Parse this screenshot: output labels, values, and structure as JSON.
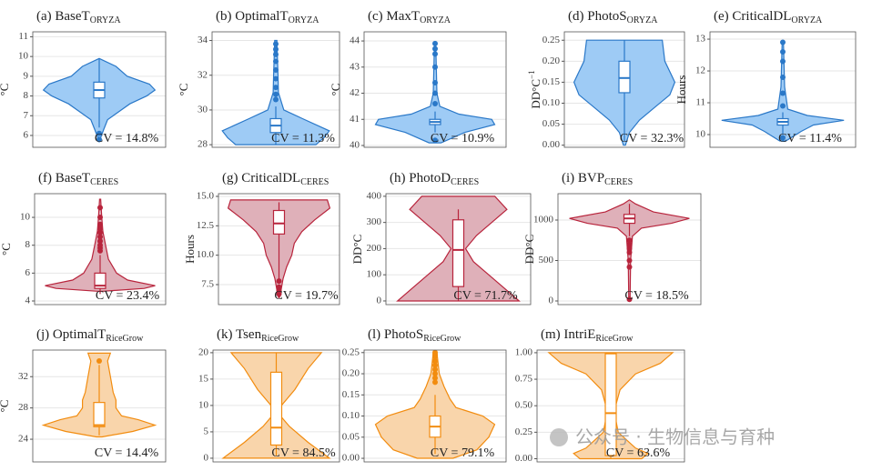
{
  "watermark": "公众号 · 生物信息与育种",
  "chart_data": [
    {
      "type": "violin",
      "title": "(a) BaseT",
      "title_sub": "ORYZA",
      "ylabel": "°C",
      "ylim": [
        5.4,
        11.25
      ],
      "yticks": [
        6,
        7,
        8,
        9,
        10,
        11
      ],
      "grid": true,
      "color": "#2a78c8",
      "fill": "#9ecbf5",
      "violin": {
        "y": [
          5.7,
          6.3,
          6.8,
          7.2,
          7.6,
          8.0,
          8.3,
          8.6,
          9.0,
          9.5,
          9.9
        ],
        "density": [
          0,
          0.08,
          0.15,
          0.35,
          0.55,
          0.85,
          1.0,
          0.9,
          0.5,
          0.3,
          0
        ]
      },
      "box": {
        "whisker_low": 6.4,
        "q1": 7.9,
        "median": 8.3,
        "q3": 8.7,
        "whisker_high": 9.9
      },
      "outliers": [
        6.1,
        5.8
      ],
      "annotation": "CV = 14.8%"
    },
    {
      "type": "violin",
      "title": "(b) OptimalT",
      "title_sub": "ORYZA",
      "ylabel": "°C",
      "ylim": [
        27.85,
        34.5
      ],
      "yticks": [
        28,
        30,
        32,
        34
      ],
      "grid": true,
      "color": "#2a78c8",
      "fill": "#9ecbf5",
      "violin": {
        "y": [
          28.0,
          28.4,
          28.8,
          29.5,
          30.0,
          31.0,
          32.0,
          33.0,
          34.0
        ],
        "density": [
          0.75,
          0.9,
          1.0,
          0.5,
          0.15,
          0.05,
          0.04,
          0.03,
          0.02
        ]
      },
      "box": {
        "whisker_low": 28.0,
        "q1": 28.7,
        "median": 29.1,
        "q3": 29.5,
        "whisker_high": 30.2
      },
      "outliers": [
        30.6,
        30.9,
        31.3,
        31.8,
        32.3,
        32.8,
        33.2,
        33.5,
        33.8
      ],
      "annotation": "CV = 11.3%"
    },
    {
      "type": "violin",
      "title": "(c) MaxT",
      "title_sub": "ORYZA",
      "ylabel": "°C",
      "ylim": [
        39.93,
        44.35
      ],
      "yticks": [
        40,
        41,
        42,
        43,
        44
      ],
      "grid": true,
      "color": "#2a78c8",
      "fill": "#9ecbf5",
      "violin": {
        "y": [
          40.1,
          40.5,
          40.8,
          41.0,
          41.2,
          41.5,
          42.0,
          43.9
        ],
        "density": [
          0.1,
          0.5,
          1.0,
          0.95,
          0.4,
          0.08,
          0.03,
          0.01
        ]
      },
      "box": {
        "whisker_low": 40.5,
        "q1": 40.8,
        "median": 40.9,
        "q3": 41.0,
        "whisker_high": 41.3
      },
      "outliers": [
        40.2,
        41.6,
        42.0,
        42.4,
        43.0,
        43.5,
        43.7,
        43.9
      ],
      "annotation": "CV = 10.9%"
    },
    {
      "type": "violin",
      "title": "(d) PhotoS",
      "title_sub": "ORYZA",
      "ylabel": "DD°C",
      "ylabel_sup": "−1",
      "ylim": [
        -0.005,
        0.27
      ],
      "yticks": [
        {
          "value": 0,
          "label": "0.00"
        },
        0.05,
        {
          "value": 0.1,
          "label": "0.10"
        },
        0.15,
        {
          "value": 0.2,
          "label": "0.20"
        },
        0.25
      ],
      "grid": true,
      "color": "#2a78c8",
      "fill": "#9ecbf5",
      "violin": {
        "y": [
          0.0,
          0.03,
          0.06,
          0.09,
          0.12,
          0.15,
          0.2,
          0.25
        ],
        "density": [
          0.02,
          0.1,
          0.3,
          0.6,
          0.9,
          1.0,
          0.8,
          0.75
        ]
      },
      "box": {
        "whisker_low": 0.01,
        "q1": 0.125,
        "median": 0.16,
        "q3": 0.2,
        "whisker_high": 0.25
      },
      "outliers": [],
      "annotation": "CV = 32.3%"
    },
    {
      "type": "violin",
      "title": "(e) CriticalDL",
      "title_sub": "ORYZA",
      "ylabel": "Hours",
      "ylim": [
        9.6,
        13.23
      ],
      "yticks": [
        10,
        11,
        12,
        13
      ],
      "grid": true,
      "color": "#2a78c8",
      "fill": "#9ecbf5",
      "violin": {
        "y": [
          9.8,
          10.1,
          10.3,
          10.45,
          10.6,
          10.8,
          11.5,
          12.9
        ],
        "density": [
          0.05,
          0.3,
          0.5,
          1.0,
          0.4,
          0.08,
          0.03,
          0.01
        ]
      },
      "box": {
        "whisker_low": 10.0,
        "q1": 10.3,
        "median": 10.4,
        "q3": 10.5,
        "whisker_high": 10.7
      },
      "outliers": [
        9.9,
        10.9,
        11.3,
        11.8,
        12.3,
        12.6,
        12.9
      ],
      "annotation": "CV = 11.4%"
    },
    {
      "type": "violin",
      "title": "(f) BaseT",
      "title_sub": "CERES",
      "ylabel": "°C",
      "ylim": [
        3.74,
        11.7
      ],
      "yticks": [
        4,
        6,
        8,
        10
      ],
      "grid": true,
      "color": "#b8243c",
      "fill": "#dfb0b9",
      "violin": {
        "y": [
          4.7,
          4.9,
          5.1,
          5.5,
          6,
          7,
          8,
          9,
          10,
          11.3
        ],
        "density": [
          0.05,
          0.8,
          1.0,
          0.5,
          0.3,
          0.15,
          0.1,
          0.05,
          0.03,
          0.01
        ]
      },
      "box": {
        "whisker_low": 4.5,
        "q1": 4.9,
        "median": 5.1,
        "q3": 6.0,
        "whisker_high": 7.3
      },
      "outliers": [
        7.6,
        7.8,
        8.0,
        8.3,
        8.6,
        8.9,
        9.2,
        9.5,
        10.0,
        10.7
      ],
      "annotation": "CV = 23.4%"
    },
    {
      "type": "violin",
      "title": "(g) CriticalDL",
      "title_sub": "CERES",
      "ylabel": "Hours",
      "ylim": [
        5.8,
        15.23
      ],
      "yticks": [
        7.5,
        {
          "value": 10,
          "label": "10.0"
        },
        12.5,
        {
          "value": 15,
          "label": "15.0"
        }
      ],
      "grid": true,
      "color": "#b8243c",
      "fill": "#dfb0b9",
      "violin": {
        "y": [
          6.4,
          7,
          8,
          9,
          10,
          11,
          12,
          13,
          14,
          14.7
        ],
        "density": [
          0.01,
          0.04,
          0.08,
          0.15,
          0.25,
          0.3,
          0.45,
          0.7,
          1.0,
          0.95
        ]
      },
      "box": {
        "whisker_low": 8.0,
        "q1": 11.8,
        "median": 12.7,
        "q3": 13.8,
        "whisker_high": 14.5
      },
      "outliers": [
        7.8,
        7.3,
        7.0,
        6.7
      ],
      "annotation": "CV = 19.7%"
    },
    {
      "type": "violin",
      "title": "(h) PhotoD",
      "title_sub": "CERES",
      "ylabel": "DD°C",
      "ylim": [
        -14,
        410
      ],
      "yticks": [
        0,
        100,
        200,
        300,
        400
      ],
      "grid": true,
      "color": "#b8243c",
      "fill": "#dfb0b9",
      "violin": {
        "y": [
          0,
          50,
          100,
          150,
          200,
          250,
          300,
          350,
          400
        ],
        "density": [
          1.0,
          0.75,
          0.5,
          0.25,
          0.12,
          0.3,
          0.55,
          0.8,
          0.6
        ]
      },
      "box": {
        "whisker_low": 0,
        "q1": 55,
        "median": 195,
        "q3": 310,
        "whisker_high": 350
      },
      "outliers": [],
      "annotation": "CV = 71.7%"
    },
    {
      "type": "violin",
      "title": "(i) BVP",
      "title_sub": "CERES",
      "ylabel": "DD°C",
      "ylim": [
        -45,
        1326
      ],
      "yticks": [
        0,
        500,
        1000
      ],
      "grid": true,
      "color": "#b8243c",
      "fill": "#dfb0b9",
      "violin": {
        "y": [
          20,
          500,
          800,
          900,
          960,
          1020,
          1100,
          1200,
          1250
        ],
        "density": [
          0.01,
          0.02,
          0.05,
          0.2,
          0.7,
          1.0,
          0.4,
          0.1,
          0
        ]
      },
      "box": {
        "whisker_low": 800,
        "q1": 960,
        "median": 1020,
        "q3": 1070,
        "whisker_high": 1200
      },
      "outliers": [
        750,
        700,
        650,
        600,
        500,
        420,
        20
      ],
      "annotation": "CV = 18.5%"
    },
    {
      "type": "violin",
      "title": "(j) OptimalT",
      "title_sub": "RiceGrow",
      "ylabel": "°C",
      "ylim": [
        21.1,
        35.4
      ],
      "yticks": [
        24,
        28,
        32
      ],
      "grid": true,
      "color": "#f28c0f",
      "fill": "#f9d5ab",
      "violin": {
        "y": [
          24.3,
          25,
          25.8,
          26.5,
          27,
          28,
          29,
          30,
          32,
          34,
          35
        ],
        "density": [
          0.05,
          0.6,
          1.0,
          0.7,
          0.4,
          0.3,
          0.3,
          0.25,
          0.2,
          0.15,
          0.2
        ]
      },
      "box": {
        "whisker_low": 24.5,
        "q1": 25.6,
        "median": 25.8,
        "q3": 28.7,
        "whisker_high": 33.5
      },
      "outliers": [
        34.0
      ],
      "annotation": "CV = 14.4%"
    },
    {
      "type": "violin",
      "title": "(k) Tsen",
      "title_sub": "RiceGrow",
      "ylim": [
        -0.7,
        20.5
      ],
      "yticks": [
        0,
        5,
        10,
        15,
        20
      ],
      "grid": true,
      "color": "#f28c0f",
      "fill": "#f9d5ab",
      "violin": {
        "y": [
          0,
          3,
          6,
          8,
          10,
          13,
          17,
          20
        ],
        "density": [
          1.0,
          0.6,
          0.25,
          0.08,
          0.1,
          0.35,
          0.6,
          0.85
        ]
      },
      "box": {
        "whisker_low": 0.5,
        "q1": 2.5,
        "median": 5.8,
        "q3": 16.3,
        "whisker_high": 20
      },
      "outliers": [],
      "annotation": "CV = 84.5%"
    },
    {
      "type": "violin",
      "title": "(l) PhotoS",
      "title_sub": "RiceGrow",
      "ylim": [
        -0.0085,
        0.256
      ],
      "yticks": [
        {
          "value": 0,
          "label": "0.00"
        },
        0.05,
        {
          "value": 0.1,
          "label": "0.10"
        },
        0.15,
        {
          "value": 0.2,
          "label": "0.20"
        },
        0.25
      ],
      "grid": true,
      "color": "#f28c0f",
      "fill": "#f9d5ab",
      "violin": {
        "y": [
          0.0,
          0.02,
          0.05,
          0.08,
          0.1,
          0.12,
          0.14,
          0.17,
          0.2,
          0.25
        ],
        "density": [
          0.3,
          0.7,
          0.9,
          1.0,
          0.8,
          0.35,
          0.25,
          0.15,
          0.07,
          0.03
        ]
      },
      "box": {
        "whisker_low": 0.01,
        "q1": 0.05,
        "median": 0.075,
        "q3": 0.1,
        "whisker_high": 0.15
      },
      "outliers": [
        0.18,
        0.19,
        0.2,
        0.21,
        0.22,
        0.23,
        0.24,
        0.245,
        0.25
      ],
      "annotation": "CV = 79.1%"
    },
    {
      "type": "violin",
      "title": "(m) IntriE",
      "title_sub": "RiceGrow",
      "ylim": [
        -0.03,
        1.025
      ],
      "yticks": [
        {
          "value": 0,
          "label": "0.00"
        },
        0.25,
        {
          "value": 0.5,
          "label": "0.50"
        },
        0.75,
        {
          "value": 1,
          "label": "1.00"
        }
      ],
      "grid": true,
      "color": "#f28c0f",
      "fill": "#f9d5ab",
      "violin": {
        "y": [
          0.0,
          0.05,
          0.1,
          0.25,
          0.4,
          0.5,
          0.65,
          0.8,
          0.9,
          1.0
        ],
        "density": [
          0.5,
          0.6,
          0.4,
          0.12,
          0.07,
          0.08,
          0.15,
          0.4,
          0.8,
          1.0
        ]
      },
      "box": {
        "whisker_low": 0.0,
        "q1": 0.03,
        "median": 0.43,
        "q3": 0.99,
        "whisker_high": 1.0
      },
      "outliers": [],
      "annotation": "CV = 63.6%"
    }
  ]
}
